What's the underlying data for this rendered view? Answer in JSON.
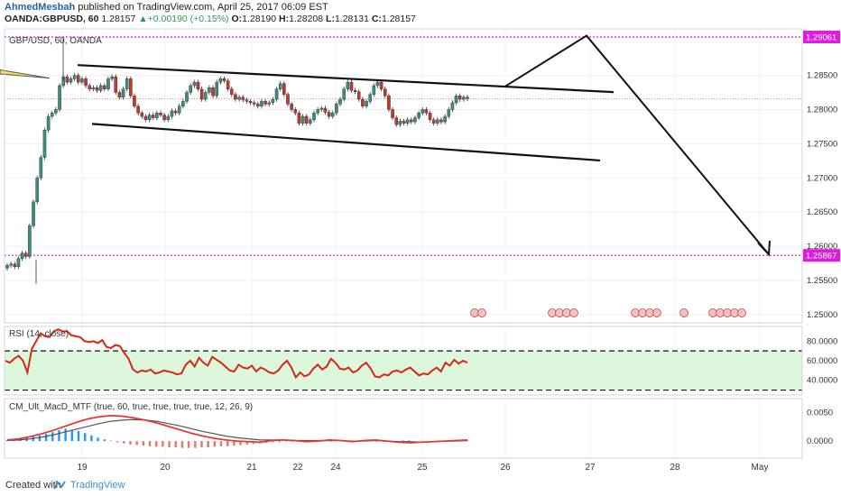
{
  "header": {
    "author": "AhmedMesbah",
    "published_text": " published on TradingView.com, April 25, 2017 06:09 EST",
    "symbol": "OANDA:GBPUSD, 60",
    "price": "1.28157",
    "change": "+0.00190 (+0.15%)",
    "ohlc": [
      {
        "label": "O:",
        "value": "1.28190"
      },
      {
        "label": "H:",
        "value": "1.28208"
      },
      {
        "label": "L:",
        "value": "1.28131"
      },
      {
        "label": "C:",
        "value": "1.28157"
      }
    ]
  },
  "footer": {
    "created_with": "Created with",
    "brand": "TradingView"
  },
  "colors": {
    "up": "#3b8f7c",
    "down": "#c0392b",
    "rsi": "#d62618",
    "rsi_band": "#d4f5d4",
    "level": "#e01be0",
    "macd_pos": "#2196f3",
    "macd_neg": "#e57373"
  },
  "chart_data": [
    {
      "type": "candlestick",
      "title": "GBP/USD, 60, OANDA",
      "x_ticks": [
        "19",
        "20",
        "21",
        "22",
        "24",
        "25",
        "26",
        "27",
        "28",
        "May"
      ],
      "y_ticks": [
        "1.28500",
        "1.28000",
        "1.27500",
        "1.27000",
        "1.26500",
        "1.26000",
        "1.25500",
        "1.25000"
      ],
      "ylim": [
        1.2488,
        1.2918
      ],
      "price_labels": [
        {
          "value": 1.29061,
          "text": "1.29061"
        },
        {
          "value": 1.25867,
          "text": "1.25867"
        }
      ],
      "current_price": 1.28157,
      "closes": [
        1.2572,
        1.2574,
        1.257,
        1.2582,
        1.259,
        1.2585,
        1.263,
        1.2665,
        1.27,
        1.273,
        1.277,
        1.279,
        1.2795,
        1.28,
        1.2835,
        1.2848,
        1.284,
        1.2845,
        1.285,
        1.284,
        1.2845,
        1.2835,
        1.283,
        1.2832,
        1.2828,
        1.2835,
        1.283,
        1.2845,
        1.2848,
        1.2825,
        1.2818,
        1.283,
        1.2845,
        1.282,
        1.2805,
        1.2795,
        1.279,
        1.2785,
        1.2792,
        1.2788,
        1.2795,
        1.2792,
        1.2785,
        1.279,
        1.2798,
        1.2795,
        1.2805,
        1.2812,
        1.2825,
        1.2835,
        1.284,
        1.283,
        1.2815,
        1.2825,
        1.2832,
        1.282,
        1.284,
        1.2845,
        1.2842,
        1.283,
        1.2822,
        1.2815,
        1.2818,
        1.2814,
        1.2812,
        1.281,
        1.2808,
        1.2805,
        1.2812,
        1.2808,
        1.281,
        1.2815,
        1.283,
        1.2838,
        1.2822,
        1.2808,
        1.28,
        1.2795,
        1.278,
        1.279,
        1.278,
        1.2785,
        1.2795,
        1.28,
        1.2802,
        1.2796,
        1.279,
        1.2795,
        1.2808,
        1.2815,
        1.283,
        1.284,
        1.2828,
        1.2826,
        1.2815,
        1.2805,
        1.2812,
        1.2822,
        1.2835,
        1.284,
        1.283,
        1.282,
        1.28,
        1.2788,
        1.2778,
        1.2783,
        1.278,
        1.2785,
        1.2782,
        1.2788,
        1.2795,
        1.28,
        1.2795,
        1.2785,
        1.278,
        1.2785,
        1.2782,
        1.279,
        1.28,
        1.281,
        1.282,
        1.2815,
        1.2818,
        1.2816
      ],
      "annotations": [
        "descending channel upper line",
        "descending channel lower line",
        "projected path up to 1.29061 then down to 1.25867"
      ]
    },
    {
      "type": "line",
      "title": "RSI (14, close)",
      "y_ticks": [
        "80.0000",
        "60.0000",
        "40.0000"
      ],
      "ylim": [
        25,
        95
      ],
      "band": [
        30,
        70
      ],
      "values": [
        60,
        58,
        62,
        65,
        60,
        48,
        72,
        80,
        88,
        85,
        84,
        90,
        92,
        90,
        90,
        86,
        85,
        84,
        80,
        79,
        80,
        78,
        81,
        74,
        73,
        76,
        75,
        68,
        62,
        51,
        48,
        50,
        49,
        51,
        47,
        48,
        50,
        49,
        48,
        46,
        47,
        56,
        60,
        54,
        63,
        58,
        55,
        64,
        61,
        58,
        54,
        50,
        49,
        56,
        53,
        52,
        55,
        49,
        53,
        51,
        48,
        47,
        50,
        56,
        60,
        53,
        43,
        48,
        44,
        46,
        52,
        56,
        51,
        54,
        62,
        58,
        52,
        51,
        53,
        48,
        50,
        55,
        58,
        52,
        44,
        43,
        46,
        45,
        49,
        50,
        48,
        51,
        53,
        49,
        45,
        47,
        46,
        50,
        53,
        49,
        58,
        55,
        61,
        57,
        60,
        58
      ]
    },
    {
      "type": "histogram",
      "title": "CM_Ult_MacD_MTF (true, 60, true, true, true, true, 12, 26, 9)",
      "y_ticks": [
        "0.0050",
        "0.0000"
      ],
      "ylim": [
        -0.003,
        0.0075
      ],
      "histogram": [
        0.0002,
        0.0003,
        0.0004,
        0.0006,
        0.0008,
        0.001,
        0.0013,
        0.0016,
        0.0019,
        0.0022,
        0.002,
        0.0018,
        0.0014,
        0.001,
        0.0006,
        0.0003,
        0.0001,
        -0.0002,
        -0.0004,
        -0.0006,
        -0.0007,
        -0.0008,
        -0.0009,
        -0.001,
        -0.001,
        -0.0011,
        -0.0011,
        -0.0012,
        -0.0012,
        -0.0012,
        -0.0011,
        -0.0011,
        -0.001,
        -0.0009,
        -0.0009,
        -0.0008,
        -0.0007,
        -0.0006,
        -0.0005,
        -0.0004,
        -0.0003,
        -0.0002,
        -0.0002,
        -0.0001,
        -0.0001,
        0.0,
        0.0001,
        -0.0001,
        0.0001,
        0.0,
        -0.0001,
        0.0001,
        0.0,
        -0.0001,
        0.0001,
        0.0001,
        0.0,
        -0.0001,
        -0.0001,
        0.0001,
        0.0,
        0.0001,
        0.0001,
        0.0,
        -0.0001,
        0.0,
        -0.0001,
        -0.0001,
        0.0,
        0.0001,
        0.0001,
        0.0001
      ],
      "macd": [
        0.0002,
        0.0004,
        0.0008,
        0.0013,
        0.0019,
        0.0026,
        0.0033,
        0.0039,
        0.0043,
        0.0045,
        0.0044,
        0.0041,
        0.0037,
        0.0032,
        0.0026,
        0.002,
        0.0014,
        0.0009,
        0.0005,
        0.0002,
        0.0,
        -0.0001,
        -0.0002,
        0.0001,
        0.0002,
        0.0001,
        -0.0001,
        0.0,
        0.0002,
        0.0001,
        -0.0001,
        0.0001,
        0.0002,
        0.0,
        -0.0002,
        -0.0003,
        -0.0002,
        -0.0001,
        0.0,
        0.0001,
        0.0002
      ],
      "signal": [
        0.0001,
        0.0002,
        0.0004,
        0.0007,
        0.0011,
        0.0016,
        0.0021,
        0.0026,
        0.0031,
        0.0035,
        0.0037,
        0.0038,
        0.0037,
        0.0035,
        0.0031,
        0.0027,
        0.0022,
        0.0017,
        0.0013,
        0.0009,
        0.0006,
        0.0004,
        0.0002,
        0.0002,
        0.0002,
        0.0001,
        0.0001,
        0.0001,
        0.0001,
        0.0001,
        0.0,
        0.0,
        0.0001,
        0.0,
        -0.0001,
        -0.0001,
        -0.0002,
        -0.0001,
        0.0,
        0.0,
        0.0001
      ]
    }
  ]
}
